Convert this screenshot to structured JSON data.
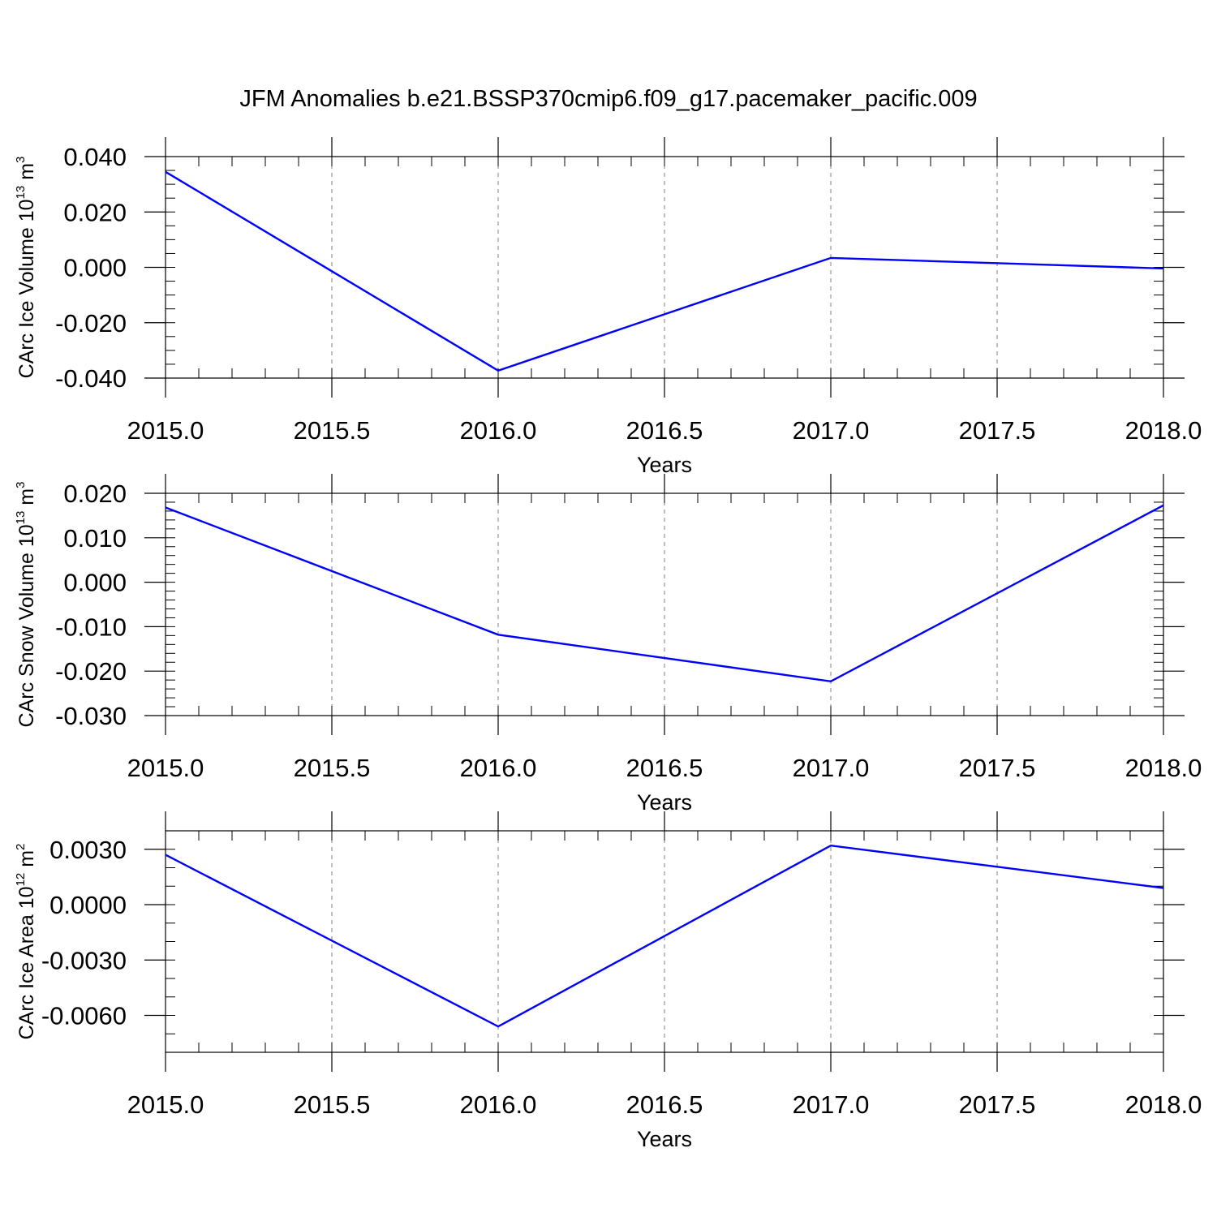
{
  "title": "JFM Anomalies b.e21.BSSP370cmip6.f09_g17.pacemaker_pacific.009",
  "colors": {
    "line": "#0000ff",
    "axis": "#000000",
    "grid": "#808080"
  },
  "chart_data": [
    {
      "type": "line",
      "ylabel": {
        "text": "CArc Ice Volume 10",
        "exp": "13",
        "unit": " m",
        "unit_exp": "3"
      },
      "xlabel": "Years",
      "xlim": [
        2015.0,
        2018.0
      ],
      "ylim": [
        -0.04,
        0.04
      ],
      "x_ticks": [
        2015.0,
        2015.5,
        2016.0,
        2016.5,
        2017.0,
        2017.5,
        2018.0
      ],
      "x_tick_labels": [
        "2015.0",
        "2015.5",
        "2016.0",
        "2016.5",
        "2017.0",
        "2017.5",
        "2018.0"
      ],
      "y_ticks": [
        0.04,
        0.02,
        0.0,
        -0.02,
        -0.04
      ],
      "y_tick_labels": [
        "0.040",
        "0.020",
        "0.000",
        "-0.020",
        "-0.040"
      ],
      "y_minor_step": 0.005,
      "x_minor_step": 0.1,
      "grid": "x-dashed",
      "series": [
        {
          "x": [
            2015,
            2016,
            2017,
            2018
          ],
          "y": [
            0.0345,
            -0.0373,
            0.0034,
            -0.0004
          ]
        }
      ]
    },
    {
      "type": "line",
      "ylabel": {
        "text": "CArc Snow Volume 10",
        "exp": "13",
        "unit": " m",
        "unit_exp": "3"
      },
      "xlabel": "Years",
      "xlim": [
        2015.0,
        2018.0
      ],
      "ylim": [
        -0.03,
        0.02
      ],
      "x_ticks": [
        2015.0,
        2015.5,
        2016.0,
        2016.5,
        2017.0,
        2017.5,
        2018.0
      ],
      "x_tick_labels": [
        "2015.0",
        "2015.5",
        "2016.0",
        "2016.5",
        "2017.0",
        "2017.5",
        "2018.0"
      ],
      "y_ticks": [
        0.02,
        0.01,
        0.0,
        -0.01,
        -0.02,
        -0.03
      ],
      "y_tick_labels": [
        "0.020",
        "0.010",
        "0.000",
        "-0.010",
        "-0.020",
        "-0.030"
      ],
      "y_minor_step": 0.002,
      "x_minor_step": 0.1,
      "grid": "x-dashed",
      "series": [
        {
          "x": [
            2015,
            2016,
            2017,
            2018
          ],
          "y": [
            0.0168,
            -0.0118,
            -0.0223,
            0.0173
          ]
        }
      ]
    },
    {
      "type": "line",
      "ylabel": {
        "text": "CArc Ice Area 10",
        "exp": "12",
        "unit": " m",
        "unit_exp": "2"
      },
      "xlabel": "Years",
      "xlim": [
        2015.0,
        2018.0
      ],
      "ylim": [
        -0.008,
        0.004
      ],
      "x_ticks": [
        2015.0,
        2015.5,
        2016.0,
        2016.5,
        2017.0,
        2017.5,
        2018.0
      ],
      "x_tick_labels": [
        "2015.0",
        "2015.5",
        "2016.0",
        "2016.5",
        "2017.0",
        "2017.5",
        "2018.0"
      ],
      "y_ticks": [
        0.003,
        0.0,
        -0.003,
        -0.006
      ],
      "y_tick_labels": [
        "0.0030",
        "0.0000",
        "-0.0030",
        "-0.0060"
      ],
      "y_minor_step": 0.001,
      "x_minor_step": 0.1,
      "grid": "x-dashed",
      "series": [
        {
          "x": [
            2015,
            2016,
            2017,
            2018
          ],
          "y": [
            0.0027,
            -0.0066,
            0.0032,
            0.0009
          ]
        }
      ]
    }
  ]
}
